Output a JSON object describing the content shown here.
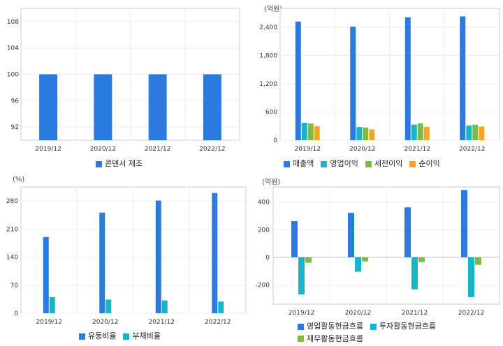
{
  "colors": {
    "blue": "#2b7bde",
    "cyan": "#1ab4c8",
    "green": "#7dbb42",
    "orange": "#f5a623"
  },
  "chart_data": [
    {
      "type": "bar",
      "categories": [
        "2019/12",
        "2020/12",
        "2021/12",
        "2022/12"
      ],
      "series": [
        {
          "name": "콘덴서 제조",
          "values": [
            100,
            100,
            100,
            100
          ],
          "color": "#2b7bde"
        }
      ],
      "yticks": [
        "92",
        "96",
        "100",
        "104",
        "108"
      ],
      "ylim": [
        90,
        110
      ],
      "unit": "",
      "legend_position": "bottom"
    },
    {
      "type": "bar",
      "categories": [
        "2019/12",
        "2020/12",
        "2021/12",
        "2022/12"
      ],
      "series": [
        {
          "name": "매출액",
          "values": [
            2520,
            2410,
            2610,
            2630
          ],
          "color": "#2b7bde"
        },
        {
          "name": "영업이익",
          "values": [
            370,
            280,
            330,
            310
          ],
          "color": "#1ab4c8"
        },
        {
          "name": "세전이익",
          "values": [
            355,
            270,
            360,
            330
          ],
          "color": "#7dbb42"
        },
        {
          "name": "순이익",
          "values": [
            300,
            230,
            280,
            290
          ],
          "color": "#f5a623"
        }
      ],
      "yticks": [
        "0",
        "600",
        "1,200",
        "1,800",
        "2,400"
      ],
      "ylim": [
        0,
        2800
      ],
      "unit": "(억원)",
      "legend_position": "bottom"
    },
    {
      "type": "bar",
      "categories": [
        "2019/12",
        "2020/12",
        "2021/12",
        "2022/12"
      ],
      "series": [
        {
          "name": "유동비율",
          "values": [
            190,
            251,
            281,
            300
          ],
          "color": "#2b7bde"
        },
        {
          "name": "부채비율",
          "values": [
            40,
            34,
            32,
            29
          ],
          "color": "#1ab4c8"
        }
      ],
      "yticks": [
        "0",
        "70",
        "140",
        "210",
        "280"
      ],
      "ylim": [
        0,
        315
      ],
      "unit": "(%)",
      "legend_position": "bottom"
    },
    {
      "type": "bar",
      "categories": [
        "2019/12",
        "2020/12",
        "2021/12",
        "2022/12"
      ],
      "series": [
        {
          "name": "영업활동현금흐름",
          "values": [
            262,
            322,
            362,
            488
          ],
          "color": "#2b7bde"
        },
        {
          "name": "투자활동현금흐름",
          "values": [
            -270,
            -105,
            -232,
            -290
          ],
          "color": "#1ab4c8"
        },
        {
          "name": "재무활동현금흐름",
          "values": [
            -40,
            -30,
            -35,
            -55
          ],
          "color": "#7dbb42"
        }
      ],
      "yticks": [
        "-200",
        "0",
        "200",
        "400"
      ],
      "ylim": [
        -340,
        510
      ],
      "unit": "(억원)",
      "legend_position": "bottom"
    }
  ]
}
